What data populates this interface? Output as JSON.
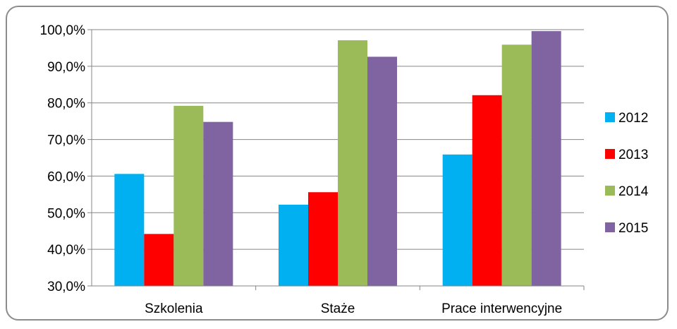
{
  "chart_data": {
    "type": "bar",
    "title": "",
    "xlabel": "",
    "ylabel": "",
    "categories": [
      "Szkolenia",
      "Staże",
      "Prace interwencyjne"
    ],
    "series": [
      {
        "name": "2012",
        "color": "#00b0f0",
        "values": [
          60.6,
          52.2,
          65.9
        ]
      },
      {
        "name": "2013",
        "color": "#ff0000",
        "values": [
          44.2,
          55.6,
          82.1
        ]
      },
      {
        "name": "2014",
        "color": "#9bbb59",
        "values": [
          79.2,
          97.1,
          95.9
        ]
      },
      {
        "name": "2015",
        "color": "#8064a2",
        "values": [
          74.8,
          92.6,
          99.6
        ]
      }
    ],
    "ylim": [
      30,
      100
    ],
    "yticks": [
      "30,0%",
      "40,0%",
      "50,0%",
      "60,0%",
      "70,0%",
      "80,0%",
      "90,0%",
      "100,0%"
    ],
    "grid": true,
    "legend_position": "right"
  }
}
